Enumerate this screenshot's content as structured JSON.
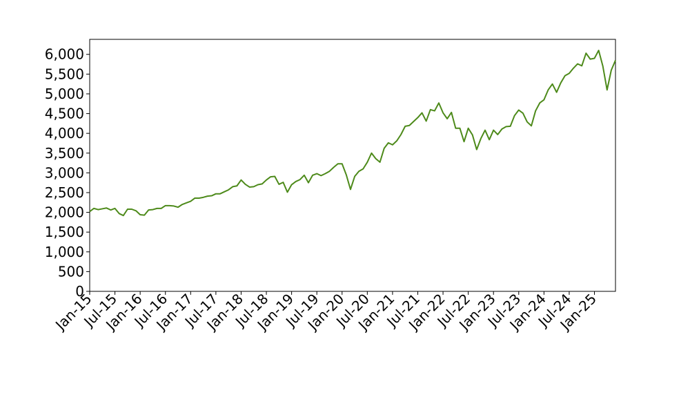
{
  "chart_data": {
    "type": "line",
    "x": [
      "Jan-15",
      null,
      null,
      null,
      null,
      null,
      "Jul-15",
      null,
      null,
      null,
      null,
      null,
      "Jan-16",
      null,
      null,
      null,
      null,
      null,
      "Jul-16",
      null,
      null,
      null,
      null,
      null,
      "Jan-17",
      null,
      null,
      null,
      null,
      null,
      "Jul-17",
      null,
      null,
      null,
      null,
      null,
      "Jan-18",
      null,
      null,
      null,
      null,
      null,
      "Jul-18",
      null,
      null,
      null,
      null,
      null,
      "Jan-19",
      null,
      null,
      null,
      null,
      null,
      "Jul-19",
      null,
      null,
      null,
      null,
      null,
      "Jan-20",
      null,
      null,
      null,
      null,
      null,
      "Jul-20",
      null,
      null,
      null,
      null,
      null,
      "Jan-21",
      null,
      null,
      null,
      null,
      null,
      "Jul-21",
      null,
      null,
      null,
      null,
      null,
      "Jan-22",
      null,
      null,
      null,
      null,
      null,
      "Jul-22",
      null,
      null,
      null,
      null,
      null,
      "Jan-23",
      null,
      null,
      null,
      null,
      null,
      "Jul-23",
      null,
      null,
      null,
      null,
      null,
      "Jan-24",
      null,
      null,
      null,
      null,
      null,
      "Jul-24",
      null,
      null,
      null,
      null,
      null,
      "Jan-25",
      null,
      null,
      null,
      null,
      null
    ],
    "values": [
      2020,
      2100,
      2070,
      2090,
      2110,
      2060,
      2100,
      1970,
      1920,
      2080,
      2080,
      2040,
      1940,
      1930,
      2060,
      2070,
      2100,
      2100,
      2170,
      2170,
      2160,
      2130,
      2200,
      2240,
      2280,
      2360,
      2360,
      2380,
      2410,
      2420,
      2470,
      2470,
      2520,
      2570,
      2650,
      2670,
      2820,
      2710,
      2640,
      2650,
      2700,
      2720,
      2820,
      2900,
      2910,
      2710,
      2760,
      2510,
      2700,
      2780,
      2830,
      2940,
      2750,
      2940,
      2980,
      2930,
      2980,
      3040,
      3140,
      3230,
      3230,
      2950,
      2580,
      2910,
      3040,
      3100,
      3270,
      3500,
      3360,
      3270,
      3620,
      3760,
      3710,
      3810,
      3970,
      4180,
      4200,
      4300,
      4400,
      4520,
      4310,
      4600,
      4570,
      4770,
      4520,
      4370,
      4530,
      4130,
      4130,
      3790,
      4130,
      3960,
      3590,
      3870,
      4080,
      3840,
      4080,
      3970,
      4110,
      4170,
      4180,
      4450,
      4590,
      4510,
      4290,
      4190,
      4570,
      4770,
      4850,
      5100,
      5250,
      5040,
      5280,
      5460,
      5520,
      5650,
      5760,
      5710,
      6030,
      5880,
      5900,
      6100,
      5700,
      5100,
      5600,
      5850
    ],
    "color": "#4d8a1a",
    "ylim": [
      0,
      6380
    ],
    "yticks": [
      0,
      500,
      {
        "value": 1000,
        "label": "1,000"
      },
      {
        "value": 1500,
        "label": "1,500"
      },
      {
        "value": 2000,
        "label": "2,000"
      },
      {
        "value": 2500,
        "label": "2,500"
      },
      {
        "value": 3000,
        "label": "3,000"
      },
      {
        "value": 3500,
        "label": "3,500"
      },
      {
        "value": 4000,
        "label": "4,000"
      },
      {
        "value": 4500,
        "label": "4,500"
      },
      {
        "value": 5000,
        "label": "5,000"
      },
      {
        "value": 5500,
        "label": "5,500"
      },
      {
        "value": 6000,
        "label": "6,000"
      }
    ],
    "grid": false
  }
}
